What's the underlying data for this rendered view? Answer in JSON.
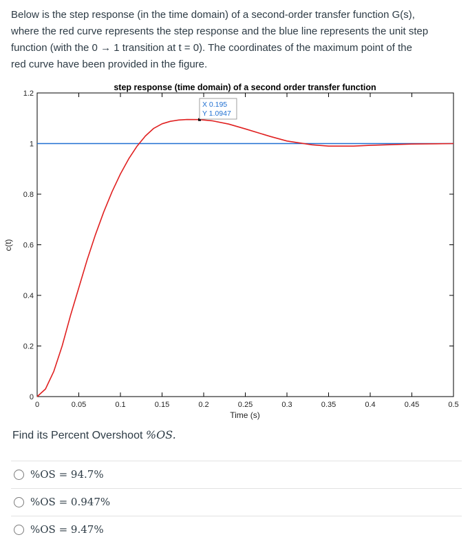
{
  "intro": {
    "line1": "Below is the step response (in the time domain) of a second-order transfer function G(s),",
    "line2": "where the red curve represents the step response and the blue line represents the unit step",
    "line3": "function (with the 0 → 1 transition at t = 0). The coordinates of the maximum point of the",
    "line4": "red curve have been provided in the figure."
  },
  "chart_data": {
    "type": "line",
    "title": "step response (time domain) of a second order transfer function",
    "xlabel": "Time (s)",
    "ylabel": "c(t)",
    "xlim": [
      0,
      0.5
    ],
    "ylim": [
      0,
      1.2
    ],
    "xticks": [
      "0",
      "0.05",
      "0.1",
      "0.15",
      "0.2",
      "0.25",
      "0.3",
      "0.35",
      "0.4",
      "0.45",
      "0.5"
    ],
    "yticks": [
      "0",
      "0.2",
      "0.4",
      "0.6",
      "0.8",
      "1",
      "1.2"
    ],
    "series": [
      {
        "color": "#e02020",
        "x": [
          0,
          0.01,
          0.02,
          0.03,
          0.04,
          0.05,
          0.06,
          0.07,
          0.08,
          0.09,
          0.1,
          0.11,
          0.12,
          0.13,
          0.14,
          0.15,
          0.16,
          0.17,
          0.18,
          0.195,
          0.21,
          0.23,
          0.25,
          0.28,
          0.3,
          0.33,
          0.35,
          0.38,
          0.4,
          0.45,
          0.5
        ],
        "y": [
          0,
          0.03,
          0.1,
          0.2,
          0.32,
          0.43,
          0.54,
          0.64,
          0.73,
          0.81,
          0.88,
          0.94,
          0.99,
          1.03,
          1.06,
          1.078,
          1.088,
          1.093,
          1.095,
          1.0947,
          1.09,
          1.077,
          1.058,
          1.028,
          1.01,
          0.995,
          0.99,
          0.99,
          0.993,
          0.998,
          1.0
        ]
      },
      {
        "color": "#1f6fd1",
        "x": [
          0,
          0.5
        ],
        "y": [
          1,
          1
        ]
      }
    ],
    "datatip": {
      "x_label": "X 0.195",
      "y_label": "Y 1.0947",
      "x": 0.195,
      "y": 1.0947
    }
  },
  "question": {
    "prefix": "Find its Percent Overshoot ",
    "math": "%OS."
  },
  "options": [
    {
      "label": "%OS = 94.7%"
    },
    {
      "label": "%OS = 0.947%"
    },
    {
      "label": "%OS = 9.47%"
    }
  ]
}
